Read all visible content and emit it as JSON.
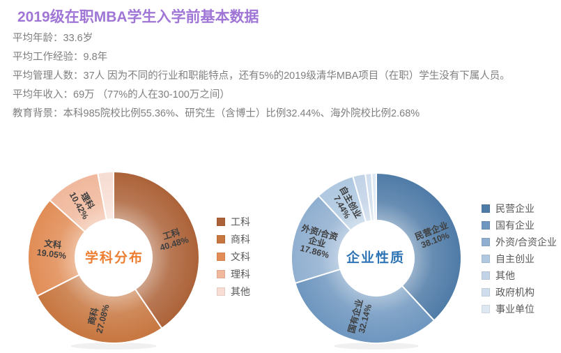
{
  "title": "2019级在职MBA学生入学前基本数据",
  "title_color": "#9F75D6",
  "info_color": "#7F7F7F",
  "info_lines": [
    "平均年龄：33.6岁",
    "平均工作经验：9.8年",
    "平均管理人数：37人 因为不同的行业和职能特点，还有5%的2019级清华MBA项目（在职）学生没有下属人员。",
    "平均年收入：69万 （77%的人在30-100万之间）",
    "教育背景：本科985院校比例55.36%、研究生（含博士）比例32.44%、海外院校比例2.68%"
  ],
  "chart_data": [
    {
      "type": "pie",
      "subtype": "donut",
      "title": "学科分布",
      "title_color": "#ED7D31",
      "label_color": "#3F3F3F",
      "legend_position": "right",
      "legend_text_color": "#595959",
      "categories": [
        "工科",
        "商科",
        "文科",
        "理科",
        "其他"
      ],
      "values": [
        40.48,
        27.08,
        19.05,
        10.42,
        2.97
      ],
      "slices": [
        {
          "name": "工科",
          "value": 40.48,
          "color": "#AC6238",
          "label_lines": [
            "工科",
            "40.48%"
          ]
        },
        {
          "name": "商科",
          "value": 27.08,
          "color": "#C7763F",
          "label_lines": [
            "商科",
            "27.08%"
          ]
        },
        {
          "name": "文科",
          "value": 19.05,
          "color": "#E18C55",
          "label_lines": [
            "文科",
            "19.05%"
          ]
        },
        {
          "name": "理科",
          "value": 10.42,
          "color": "#F0B89C",
          "label_lines": [
            "理科",
            "10.42%"
          ]
        },
        {
          "name": "其他",
          "value": 2.97,
          "color": "#F7DDD3",
          "label_lines": []
        }
      ]
    },
    {
      "type": "pie",
      "subtype": "donut",
      "title": "企业性质",
      "title_color": "#2E74B5",
      "label_color": "#3F3F3F",
      "legend_position": "right",
      "legend_text_color": "#595959",
      "categories": [
        "民营企业",
        "国有企业",
        "外资/合资企业",
        "自主创业",
        "其他",
        "政府机构",
        "事业单位"
      ],
      "values": [
        38.1,
        32.14,
        17.86,
        7.44,
        2.38,
        1.19,
        0.89
      ],
      "slices": [
        {
          "name": "民营企业",
          "value": 38.1,
          "color": "#4F7BA7",
          "label_lines": [
            "民营企业",
            "38.10%"
          ]
        },
        {
          "name": "国有企业",
          "value": 32.14,
          "color": "#6E96BF",
          "label_lines": [
            "国有企业",
            "32.14%"
          ]
        },
        {
          "name": "外资/合资企业",
          "value": 17.86,
          "color": "#90AFD0",
          "label_lines": [
            "外资/合资",
            "企业",
            "17.86%"
          ]
        },
        {
          "name": "自主创业",
          "value": 7.44,
          "color": "#AFC8E0",
          "label_lines": [
            "自主创业",
            "7.44%"
          ]
        },
        {
          "name": "其他",
          "value": 2.38,
          "color": "#C2D3E7",
          "label_lines": []
        },
        {
          "name": "政府机构",
          "value": 1.19,
          "color": "#CFDDED",
          "label_lines": []
        },
        {
          "name": "事业单位",
          "value": 0.89,
          "color": "#DEE8F3",
          "label_lines": []
        }
      ]
    }
  ]
}
